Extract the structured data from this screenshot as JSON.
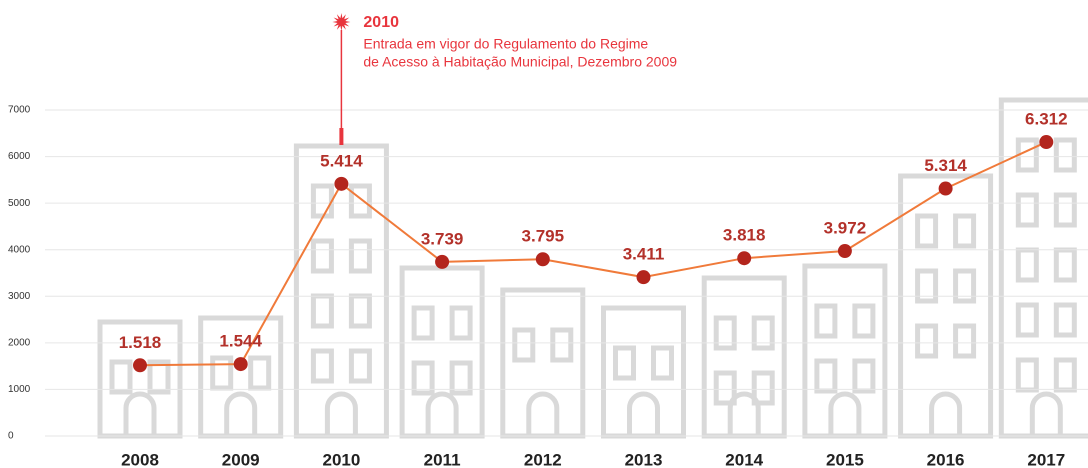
{
  "chart_data": {
    "type": "line",
    "categories": [
      "2008",
      "2009",
      "2010",
      "2011",
      "2012",
      "2013",
      "2014",
      "2015",
      "2016",
      "2017"
    ],
    "series": [
      {
        "color": "#f07a3a",
        "marker_color": "#b3251d",
        "values": [
          1518,
          1544,
          5414,
          3739,
          3795,
          3411,
          3818,
          3972,
          5314,
          6312
        ],
        "value_labels": [
          "1.518",
          "1.544",
          "5.414",
          "3.739",
          "3.795",
          "3.411",
          "3.818",
          "3.972",
          "5.314",
          "6.312"
        ]
      }
    ],
    "ylim": [
      0,
      7000
    ],
    "yticks": [
      0,
      1000,
      2000,
      3000,
      4000,
      5000,
      6000,
      7000
    ],
    "grid": true,
    "annotation": {
      "category_index": 2,
      "title": "2010",
      "color": "#e8353d",
      "lines": [
        "Entrada em vigor do Regulamento do Regime",
        "de Acesso à Habitação Municipal, Dezembro 2009"
      ]
    }
  }
}
